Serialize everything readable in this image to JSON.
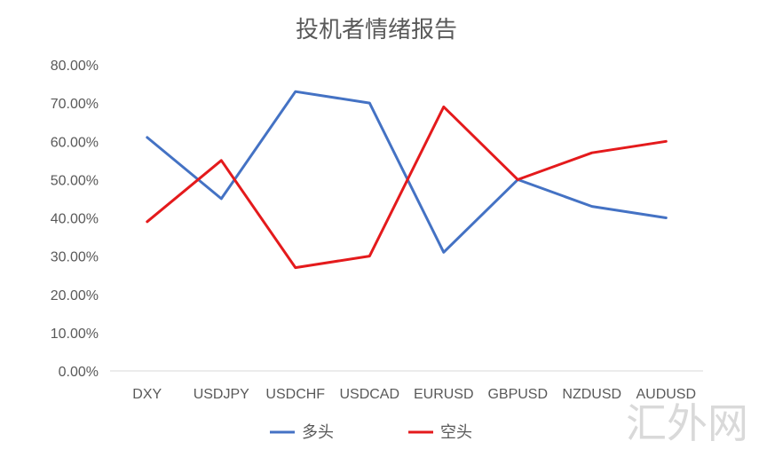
{
  "chart_data": {
    "type": "line",
    "title": "投机者情绪报告",
    "categories": [
      "DXY",
      "USDJPY",
      "USDCHF",
      "USDCAD",
      "EURUSD",
      "GBPUSD",
      "NZDUSD",
      "AUDUSD"
    ],
    "ylim": [
      0,
      0.8
    ],
    "y_ticks": [
      "0.00%",
      "10.00%",
      "20.00%",
      "30.00%",
      "40.00%",
      "50.00%",
      "60.00%",
      "70.00%",
      "80.00%"
    ],
    "grid": false,
    "legend_position": "bottom",
    "series": [
      {
        "name": "多头",
        "color": "#4472c4",
        "values": [
          0.61,
          0.45,
          0.73,
          0.7,
          0.31,
          0.5,
          0.43,
          0.4
        ]
      },
      {
        "name": "空头",
        "color": "#e41a1c",
        "values": [
          0.39,
          0.55,
          0.27,
          0.3,
          0.69,
          0.5,
          0.57,
          0.6
        ]
      }
    ]
  },
  "watermark": "汇外网"
}
